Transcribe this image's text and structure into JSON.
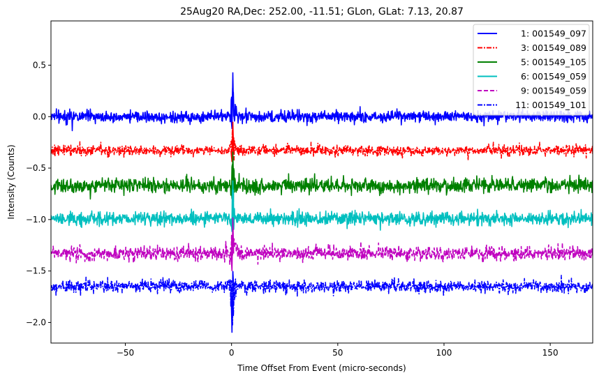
{
  "chart_data": {
    "type": "line",
    "title": "25Aug20 RA,Dec:  252.00, -11.51; GLon, GLat:    7.13,  20.87",
    "xlabel": "Time Offset From Event (micro-seconds)",
    "ylabel": "Intensity (Counts)",
    "xlim": [
      -85,
      170
    ],
    "ylim": [
      -2.2,
      0.93
    ],
    "xticks": [
      -50,
      0,
      50,
      100,
      150
    ],
    "xtick_labels": [
      "−50",
      "0",
      "50",
      "100",
      "150"
    ],
    "yticks": [
      0.5,
      0.0,
      -0.5,
      -1.0,
      -1.5,
      -2.0
    ],
    "ytick_labels": [
      "0.5",
      "0.0",
      "−0.5",
      "−1.0",
      "−1.5",
      "−2.0"
    ],
    "legend_position": "top-right",
    "event_x": 0,
    "series": [
      {
        "name": "1: 001549_097",
        "color": "#0000ff",
        "style": "solid",
        "offset": 0.0,
        "noise": 0.028,
        "spike_max": 0.43,
        "spike_min": -0.12
      },
      {
        "name": "3: 001549_089",
        "color": "#ff0000",
        "style": "dashdot",
        "offset": -0.33,
        "noise": 0.024,
        "spike_max": -0.05,
        "spike_min": -0.44
      },
      {
        "name": "5: 001549_105",
        "color": "#008000",
        "style": "solid",
        "offset": -0.67,
        "noise": 0.035,
        "spike_max": -0.34,
        "spike_min": -0.8
      },
      {
        "name": "6: 001549_059",
        "color": "#00bfbf",
        "style": "solid",
        "offset": -0.99,
        "noise": 0.032,
        "spike_max": -0.62,
        "spike_min": -1.12
      },
      {
        "name": "9: 001549_059",
        "color": "#bf00bf",
        "style": "dashed",
        "offset": -1.33,
        "noise": 0.034,
        "spike_max": -0.98,
        "spike_min": -1.5
      },
      {
        "name": "11: 001549_101",
        "color": "#0000ff",
        "style": "dashdot",
        "offset": -1.65,
        "noise": 0.028,
        "spike_max": -1.5,
        "spike_min": -2.1
      }
    ]
  }
}
